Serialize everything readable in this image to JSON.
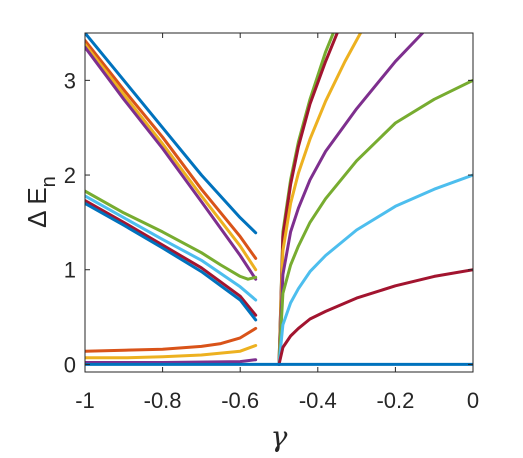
{
  "chart_data": {
    "type": "line",
    "xlabel": "γ",
    "ylabel_main": "Δ E",
    "ylabel_sub": "n",
    "xlim": [
      -1,
      0
    ],
    "ylim": [
      -0.08,
      3.5
    ],
    "x_ticks": [
      -1,
      -0.8,
      -0.6,
      -0.4,
      -0.2,
      0
    ],
    "x_tick_labels": [
      "-1",
      "-0.8",
      "-0.6",
      "-0.4",
      "-0.2",
      "0"
    ],
    "y_ticks": [
      0,
      1,
      2,
      3
    ],
    "y_tick_labels": [
      "0",
      "1",
      "2",
      "3"
    ],
    "grid": false,
    "legend": "none",
    "series": [
      {
        "color": "#0072BD",
        "x": [
          -1,
          -0.9,
          -0.8,
          -0.7,
          -0.6,
          -0.56
        ],
        "y": [
          3.5,
          3.0,
          2.5,
          2.0,
          1.55,
          1.39
        ]
      },
      {
        "color": "#D95319",
        "x": [
          -1,
          -0.9,
          -0.8,
          -0.7,
          -0.6,
          -0.56
        ],
        "y": [
          3.42,
          2.9,
          2.4,
          1.85,
          1.35,
          1.12
        ]
      },
      {
        "color": "#EDB120",
        "x": [
          -1,
          -0.9,
          -0.8,
          -0.7,
          -0.6,
          -0.56
        ],
        "y": [
          3.38,
          2.85,
          2.33,
          1.78,
          1.25,
          1.0
        ]
      },
      {
        "color": "#7E2F8E",
        "x": [
          -1,
          -0.9,
          -0.8,
          -0.7,
          -0.6,
          -0.56
        ],
        "y": [
          3.35,
          2.8,
          2.28,
          1.72,
          1.15,
          0.9
        ]
      },
      {
        "color": "#77AC30",
        "x": [
          -1,
          -0.9,
          -0.8,
          -0.7,
          -0.65,
          -0.6,
          -0.58,
          -0.56
        ],
        "y": [
          1.83,
          1.6,
          1.4,
          1.18,
          1.05,
          0.93,
          0.9,
          0.92
        ]
      },
      {
        "color": "#4DBEEE",
        "x": [
          -1,
          -0.9,
          -0.8,
          -0.7,
          -0.6,
          -0.56
        ],
        "y": [
          1.78,
          1.55,
          1.32,
          1.1,
          0.82,
          0.68
        ]
      },
      {
        "color": "#A2142F",
        "x": [
          -1,
          -0.9,
          -0.8,
          -0.7,
          -0.6,
          -0.56
        ],
        "y": [
          1.73,
          1.5,
          1.26,
          1.02,
          0.72,
          0.52
        ]
      },
      {
        "color": "#0072BD",
        "x": [
          -1,
          -0.9,
          -0.8,
          -0.7,
          -0.6,
          -0.56
        ],
        "y": [
          1.7,
          1.47,
          1.23,
          0.98,
          0.68,
          0.47
        ]
      },
      {
        "color": "#D95319",
        "x": [
          -1,
          -0.9,
          -0.8,
          -0.7,
          -0.65,
          -0.6,
          -0.56
        ],
        "y": [
          0.14,
          0.15,
          0.16,
          0.19,
          0.22,
          0.28,
          0.38
        ]
      },
      {
        "color": "#EDB120",
        "x": [
          -1,
          -0.9,
          -0.8,
          -0.7,
          -0.6,
          -0.56
        ],
        "y": [
          0.07,
          0.07,
          0.08,
          0.1,
          0.14,
          0.2
        ]
      },
      {
        "color": "#7E2F8E",
        "x": [
          -1,
          -0.8,
          -0.6,
          -0.56
        ],
        "y": [
          0.02,
          0.02,
          0.03,
          0.05
        ]
      },
      {
        "color": "#77AC30",
        "x": [
          -0.5,
          -0.49,
          -0.47,
          -0.45,
          -0.42,
          -0.4,
          -0.38,
          -0.36
        ],
        "y": [
          0.0,
          1.4,
          1.95,
          2.35,
          2.8,
          3.05,
          3.3,
          3.5
        ]
      },
      {
        "color": "#A2142F",
        "x": [
          -0.5,
          -0.49,
          -0.47,
          -0.45,
          -0.42,
          -0.38,
          -0.35
        ],
        "y": [
          0.0,
          1.35,
          1.9,
          2.3,
          2.75,
          3.2,
          3.5
        ]
      },
      {
        "color": "#EDB120",
        "x": [
          -0.5,
          -0.49,
          -0.47,
          -0.45,
          -0.42,
          -0.38,
          -0.33,
          -0.29
        ],
        "y": [
          0.0,
          1.2,
          1.7,
          2.02,
          2.38,
          2.78,
          3.2,
          3.5
        ]
      },
      {
        "color": "#7E2F8E",
        "x": [
          -0.5,
          -0.49,
          -0.47,
          -0.45,
          -0.42,
          -0.38,
          -0.3,
          -0.2,
          -0.13
        ],
        "y": [
          0.0,
          0.95,
          1.4,
          1.65,
          1.95,
          2.25,
          2.7,
          3.2,
          3.5
        ]
      },
      {
        "color": "#77AC30",
        "x": [
          -0.5,
          -0.49,
          -0.47,
          -0.45,
          -0.42,
          -0.38,
          -0.3,
          -0.2,
          -0.1,
          0.0
        ],
        "y": [
          0.0,
          0.75,
          1.05,
          1.25,
          1.5,
          1.75,
          2.15,
          2.55,
          2.8,
          3.0
        ]
      },
      {
        "color": "#4DBEEE",
        "x": [
          -0.5,
          -0.49,
          -0.47,
          -0.45,
          -0.42,
          -0.38,
          -0.3,
          -0.2,
          -0.1,
          0.0
        ],
        "y": [
          0.0,
          0.42,
          0.65,
          0.8,
          0.98,
          1.15,
          1.42,
          1.67,
          1.85,
          2.0
        ]
      },
      {
        "color": "#A2142F",
        "x": [
          -0.5,
          -0.49,
          -0.47,
          -0.45,
          -0.42,
          -0.38,
          -0.3,
          -0.2,
          -0.1,
          0.0
        ],
        "y": [
          0.0,
          0.18,
          0.3,
          0.38,
          0.48,
          0.56,
          0.7,
          0.83,
          0.93,
          1.0
        ]
      },
      {
        "color": "#0072BD",
        "x": [
          -1,
          0
        ],
        "y": [
          0.0,
          0.0
        ]
      }
    ]
  }
}
